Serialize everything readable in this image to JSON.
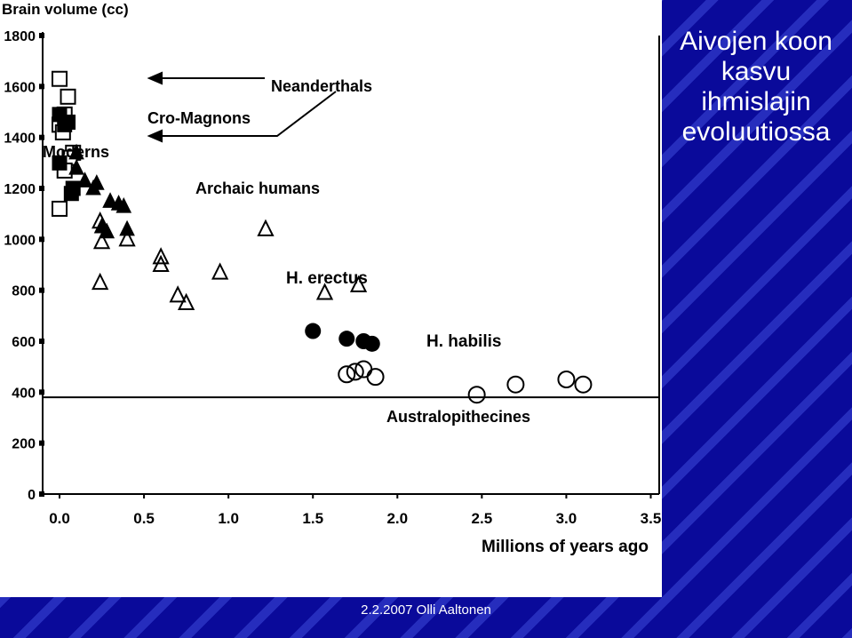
{
  "slide": {
    "title": "Aivojen koon kasvu ihmislajin evoluutiossa",
    "footer": "2.2.2007 Olli Aaltonen"
  },
  "colors": {
    "background": "#0a0a9a",
    "panel": "#ffffff",
    "ink": "#000000",
    "text": "#ffffff"
  },
  "chart_data": {
    "type": "scatter",
    "ylabel": "Brain volume (cc)",
    "xlabel": "Millions of years ago",
    "xlim": [
      -0.1,
      3.55
    ],
    "ylim": [
      0,
      1800
    ],
    "x_ticks": [
      "0.0",
      "0.5",
      "1.0",
      "1.5",
      "2.0",
      "2.5",
      "3.0",
      "3.5"
    ],
    "y_ticks": [
      "0",
      "200",
      "400",
      "600",
      "800",
      "1000",
      "1200",
      "1400",
      "1600",
      "1800"
    ],
    "reference_line_y": 380,
    "annotations": [
      "Neanderthals",
      "Cro-Magnons",
      "Moderns",
      "Archaic humans",
      "H. erectus",
      "H. habilis",
      "Australopithecines"
    ],
    "series": [
      {
        "name": "Neanderthals",
        "marker": "open-square",
        "x": [
          0.0,
          0.05,
          0.03,
          0.0,
          0.02,
          0.08,
          0.06,
          0.03,
          0.0
        ],
        "y": [
          1630,
          1560,
          1490,
          1450,
          1420,
          1340,
          1320,
          1270,
          1120
        ]
      },
      {
        "name": "Cro-Magnons",
        "marker": "filled-square",
        "x": [
          0.0,
          0.03,
          0.05,
          0.0,
          0.08,
          0.07
        ],
        "y": [
          1490,
          1450,
          1460,
          1300,
          1200,
          1180
        ]
      },
      {
        "name": "Archaic humans",
        "marker": "filled-triangle",
        "x": [
          0.1,
          0.1,
          0.15,
          0.2,
          0.22,
          0.3,
          0.35,
          0.38,
          0.25,
          0.28,
          0.4
        ],
        "y": [
          1340,
          1280,
          1230,
          1200,
          1220,
          1150,
          1140,
          1130,
          1050,
          1030,
          1040
        ]
      },
      {
        "name": "H. erectus",
        "marker": "open-triangle",
        "x": [
          0.24,
          0.25,
          0.4,
          0.6,
          0.6,
          0.7,
          0.75,
          0.95,
          1.22,
          1.57,
          1.77,
          0.24
        ],
        "y": [
          1070,
          990,
          1000,
          930,
          900,
          780,
          750,
          870,
          1040,
          790,
          820,
          830
        ]
      },
      {
        "name": "H. habilis",
        "marker": "filled-circle",
        "x": [
          1.5,
          1.7,
          1.8,
          1.85
        ],
        "y": [
          640,
          610,
          600,
          590
        ]
      },
      {
        "name": "Australopithecines",
        "marker": "open-circle",
        "x": [
          1.7,
          1.75,
          1.8,
          1.87,
          2.47,
          2.7,
          3.0,
          3.1
        ],
        "y": [
          470,
          480,
          490,
          460,
          390,
          430,
          450,
          430
        ]
      }
    ]
  }
}
